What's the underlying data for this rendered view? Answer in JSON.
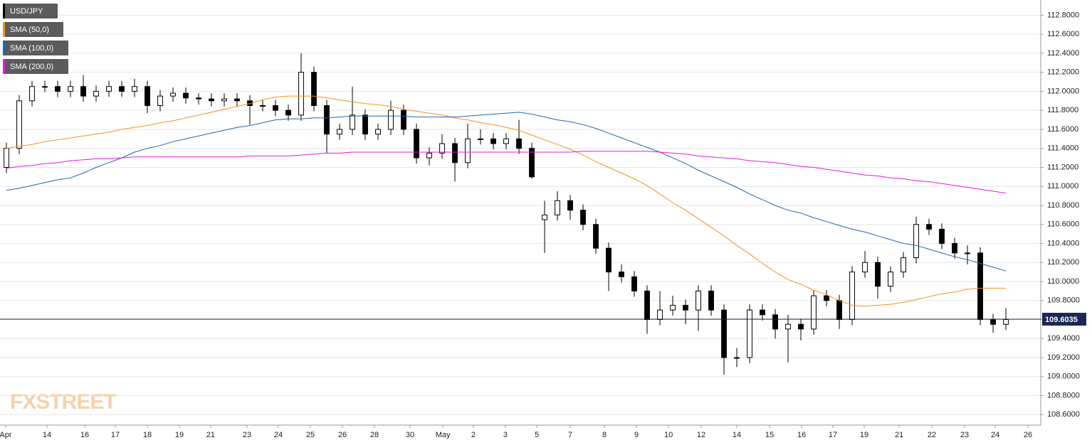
{
  "chart_data": {
    "type": "candlestick",
    "watermark": "FXSTREET",
    "ylim": [
      108.49,
      112.96
    ],
    "xlim": [
      0,
      81.22
    ],
    "grid": true,
    "legend": "upper left",
    "yticks": [
      {
        "value": 108.6,
        "label": "108.6000"
      },
      {
        "value": 108.8,
        "label": "108.8000"
      },
      {
        "value": 109.0,
        "label": "109.0000"
      },
      {
        "value": 109.2,
        "label": "109.2000"
      },
      {
        "value": 109.4,
        "label": "109.4000"
      },
      {
        "value": 109.6,
        "label": "109.6000"
      },
      {
        "value": 109.8,
        "label": "109.8000"
      },
      {
        "value": 110.0,
        "label": "110.0000"
      },
      {
        "value": 110.2,
        "label": "110.2000"
      },
      {
        "value": 110.4,
        "label": "110.4000"
      },
      {
        "value": 110.6,
        "label": "110.6000"
      },
      {
        "value": 110.8,
        "label": "110.8000"
      },
      {
        "value": 111.0,
        "label": "111.0000"
      },
      {
        "value": 111.2,
        "label": "111.2000"
      },
      {
        "value": 111.4,
        "label": "111.4000"
      },
      {
        "value": 111.6,
        "label": "111.6000"
      },
      {
        "value": 111.8,
        "label": "111.8000"
      },
      {
        "value": 112.0,
        "label": "112.0000"
      },
      {
        "value": 112.2,
        "label": "112.2000"
      },
      {
        "value": 112.4,
        "label": "112.4000"
      },
      {
        "value": 112.6,
        "label": "112.6000"
      },
      {
        "value": 112.8,
        "label": "112.8000"
      }
    ],
    "xticks": [
      {
        "value": 0.44,
        "label": "Apr"
      },
      {
        "value": 3.67,
        "label": "14"
      },
      {
        "value": 6.61,
        "label": "16"
      },
      {
        "value": 9.0,
        "label": "17"
      },
      {
        "value": 11.5,
        "label": "18"
      },
      {
        "value": 14.0,
        "label": "19"
      },
      {
        "value": 16.44,
        "label": "21"
      },
      {
        "value": 19.28,
        "label": "23"
      },
      {
        "value": 21.72,
        "label": "24"
      },
      {
        "value": 24.22,
        "label": "25"
      },
      {
        "value": 26.72,
        "label": "26"
      },
      {
        "value": 29.22,
        "label": "28"
      },
      {
        "value": 32.0,
        "label": "30"
      },
      {
        "value": 34.56,
        "label": "May"
      },
      {
        "value": 36.94,
        "label": "2"
      },
      {
        "value": 39.44,
        "label": "3"
      },
      {
        "value": 41.89,
        "label": "5"
      },
      {
        "value": 44.5,
        "label": "7"
      },
      {
        "value": 47.17,
        "label": "8"
      },
      {
        "value": 49.67,
        "label": "9"
      },
      {
        "value": 52.17,
        "label": "10"
      },
      {
        "value": 54.72,
        "label": "12"
      },
      {
        "value": 57.5,
        "label": "14"
      },
      {
        "value": 60.06,
        "label": "15"
      },
      {
        "value": 62.56,
        "label": "16"
      },
      {
        "value": 65.0,
        "label": "17"
      },
      {
        "value": 67.44,
        "label": "19"
      },
      {
        "value": 70.17,
        "label": "21"
      },
      {
        "value": 72.72,
        "label": "22"
      },
      {
        "value": 75.28,
        "label": "23"
      },
      {
        "value": 77.67,
        "label": "24"
      },
      {
        "value": 80.22,
        "label": "26"
      }
    ],
    "current_price": 109.6035,
    "current_price_color": "#1b2752",
    "candles": {
      "name": "USD/JPY",
      "color": "#000000",
      "up_color": "#ffffff",
      "down_color": "#000000",
      "open": [
        111.2,
        111.4,
        111.9,
        112.05,
        112.05,
        112.0,
        112.05,
        111.95,
        112.0,
        112.05,
        112.0,
        112.05,
        111.85,
        111.95,
        111.98,
        111.93,
        111.92,
        111.9,
        111.92,
        111.9,
        111.85,
        111.85,
        111.8,
        111.75,
        112.2,
        111.85,
        111.55,
        111.6,
        111.75,
        111.55,
        111.6,
        111.8,
        111.6,
        111.3,
        111.35,
        111.45,
        111.25,
        111.5,
        111.5,
        111.45,
        111.5,
        111.4,
        110.65,
        110.7,
        110.85,
        110.75,
        110.6,
        110.35,
        110.1,
        110.05,
        109.9,
        109.6,
        109.7,
        109.75,
        109.7,
        109.9,
        109.7,
        109.2,
        109.2,
        109.7,
        109.65,
        109.5,
        109.55,
        109.5,
        109.85,
        109.8,
        109.6,
        110.1,
        110.2,
        109.95,
        110.1,
        110.25,
        110.6,
        110.55,
        110.4,
        110.3,
        110.3,
        109.6,
        109.55
      ],
      "high": [
        111.46,
        111.96,
        112.11,
        112.11,
        112.11,
        112.11,
        112.17,
        112.06,
        112.11,
        112.11,
        112.13,
        112.11,
        112.01,
        112.04,
        112.04,
        111.98,
        111.98,
        111.98,
        111.98,
        111.96,
        111.91,
        111.91,
        111.86,
        112.4,
        112.26,
        111.91,
        111.66,
        112.05,
        111.81,
        111.66,
        111.9,
        111.86,
        111.66,
        111.41,
        111.55,
        111.51,
        111.66,
        111.6,
        111.56,
        111.56,
        111.7,
        111.46,
        110.85,
        110.95,
        110.91,
        110.81,
        110.66,
        110.41,
        110.18,
        110.11,
        109.96,
        109.9,
        109.85,
        109.81,
        109.96,
        109.96,
        109.76,
        109.3,
        109.76,
        109.76,
        109.71,
        109.65,
        109.61,
        109.91,
        109.91,
        109.86,
        110.16,
        110.32,
        110.26,
        110.16,
        110.31,
        110.68,
        110.66,
        110.61,
        110.46,
        110.38,
        110.36,
        109.66,
        109.72
      ],
      "low": [
        111.14,
        111.34,
        111.84,
        111.99,
        111.94,
        111.94,
        111.89,
        111.89,
        111.94,
        111.94,
        111.94,
        111.77,
        111.79,
        111.89,
        111.87,
        111.86,
        111.84,
        111.84,
        111.84,
        111.65,
        111.79,
        111.74,
        111.69,
        111.69,
        111.79,
        111.35,
        111.49,
        111.54,
        111.49,
        111.49,
        111.54,
        111.54,
        111.24,
        111.22,
        111.29,
        111.05,
        111.19,
        111.44,
        111.39,
        111.39,
        111.34,
        111.08,
        110.3,
        110.64,
        110.65,
        110.54,
        110.29,
        109.9,
        109.99,
        109.84,
        109.45,
        109.54,
        109.64,
        109.55,
        109.48,
        109.64,
        109.02,
        109.1,
        109.14,
        109.59,
        109.4,
        109.15,
        109.38,
        109.44,
        109.74,
        109.5,
        109.54,
        110.04,
        109.82,
        109.89,
        110.04,
        110.19,
        110.49,
        110.34,
        110.24,
        110.18,
        109.54,
        109.46,
        109.49
      ],
      "close": [
        111.4,
        111.9,
        112.05,
        112.05,
        112.0,
        112.05,
        111.95,
        112.0,
        112.05,
        112.0,
        112.05,
        111.85,
        111.95,
        111.98,
        111.93,
        111.92,
        111.9,
        111.92,
        111.9,
        111.85,
        111.85,
        111.8,
        111.75,
        112.2,
        111.85,
        111.55,
        111.6,
        111.75,
        111.55,
        111.6,
        111.8,
        111.6,
        111.3,
        111.35,
        111.45,
        111.25,
        111.5,
        111.5,
        111.45,
        111.5,
        111.4,
        111.1,
        110.7,
        110.85,
        110.75,
        110.6,
        110.35,
        110.1,
        110.05,
        109.9,
        109.6,
        109.7,
        109.75,
        109.7,
        109.9,
        109.7,
        109.2,
        109.2,
        109.7,
        109.65,
        109.5,
        109.55,
        109.5,
        109.85,
        109.8,
        109.6,
        110.1,
        110.2,
        109.95,
        110.1,
        110.25,
        110.6,
        110.55,
        110.4,
        110.3,
        110.3,
        109.6,
        109.55,
        109.6
      ]
    },
    "series": [
      {
        "name": "SMA (50,0)",
        "color": "#f5921e",
        "values": [
          111.4,
          111.42,
          111.44,
          111.47,
          111.49,
          111.51,
          111.53,
          111.55,
          111.57,
          111.6,
          111.62,
          111.64,
          111.67,
          111.69,
          111.72,
          111.75,
          111.78,
          111.81,
          111.84,
          111.87,
          111.91,
          111.94,
          111.95,
          111.95,
          111.95,
          111.93,
          111.91,
          111.89,
          111.87,
          111.86,
          111.84,
          111.81,
          111.79,
          111.77,
          111.75,
          111.72,
          111.7,
          111.67,
          111.65,
          111.62,
          111.59,
          111.54,
          111.49,
          111.44,
          111.39,
          111.33,
          111.26,
          111.2,
          111.14,
          111.08,
          111.01,
          110.92,
          110.83,
          110.75,
          110.66,
          110.57,
          110.48,
          110.38,
          110.29,
          110.19,
          110.1,
          110.02,
          109.97,
          109.91,
          109.86,
          109.8,
          109.75,
          109.74,
          109.75,
          109.76,
          109.78,
          109.81,
          109.84,
          109.87,
          109.89,
          109.92,
          109.93,
          109.93,
          109.93
        ]
      },
      {
        "name": "SMA (100,0)",
        "color": "#2466b0",
        "values": [
          110.96,
          110.98,
          111.01,
          111.04,
          111.07,
          111.09,
          111.14,
          111.2,
          111.25,
          111.3,
          111.36,
          111.4,
          111.43,
          111.47,
          111.5,
          111.53,
          111.56,
          111.59,
          111.62,
          111.64,
          111.67,
          111.7,
          111.71,
          111.71,
          111.72,
          111.72,
          111.73,
          111.74,
          111.74,
          111.74,
          111.74,
          111.74,
          111.73,
          111.73,
          111.73,
          111.73,
          111.74,
          111.75,
          111.76,
          111.77,
          111.78,
          111.76,
          111.73,
          111.7,
          111.68,
          111.65,
          111.61,
          111.56,
          111.51,
          111.46,
          111.41,
          111.36,
          111.3,
          111.24,
          111.17,
          111.11,
          111.05,
          110.99,
          110.92,
          110.86,
          110.8,
          110.75,
          110.72,
          110.67,
          110.63,
          110.59,
          110.55,
          110.52,
          110.48,
          110.44,
          110.4,
          110.38,
          110.34,
          110.3,
          110.26,
          110.23,
          110.19,
          110.15,
          110.11
        ]
      },
      {
        "name": "SMA (200,0)",
        "color": "#e619e6",
        "values": [
          111.19,
          111.21,
          111.22,
          111.24,
          111.25,
          111.27,
          111.28,
          111.29,
          111.29,
          111.3,
          111.31,
          111.31,
          111.31,
          111.31,
          111.31,
          111.31,
          111.31,
          111.31,
          111.31,
          111.32,
          111.32,
          111.32,
          111.32,
          111.33,
          111.34,
          111.35,
          111.35,
          111.36,
          111.36,
          111.36,
          111.36,
          111.36,
          111.36,
          111.36,
          111.36,
          111.36,
          111.36,
          111.36,
          111.36,
          111.36,
          111.36,
          111.36,
          111.36,
          111.36,
          111.36,
          111.37,
          111.37,
          111.37,
          111.37,
          111.37,
          111.37,
          111.36,
          111.35,
          111.34,
          111.32,
          111.31,
          111.3,
          111.29,
          111.27,
          111.26,
          111.25,
          111.23,
          111.21,
          111.2,
          111.18,
          111.16,
          111.14,
          111.12,
          111.11,
          111.09,
          111.08,
          111.06,
          111.05,
          111.03,
          111.01,
          110.99,
          110.97,
          110.95,
          110.93
        ]
      }
    ]
  }
}
